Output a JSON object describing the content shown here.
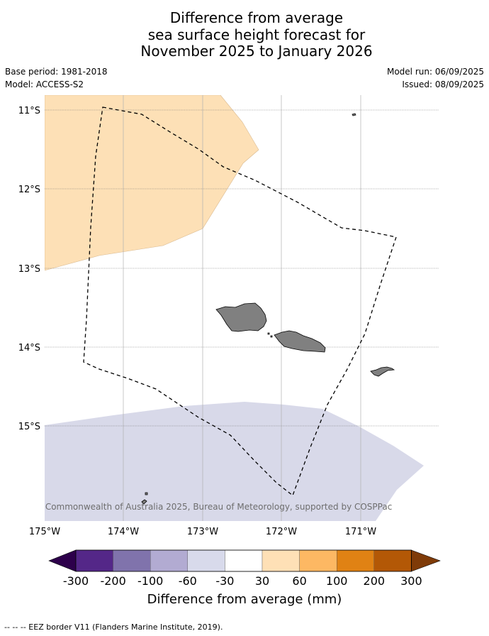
{
  "title": {
    "line1": "Difference from average",
    "line2": "sea surface height forecast for",
    "line3": "November 2025 to January 2026"
  },
  "meta": {
    "base_period": "Base period: 1981-2018",
    "model": "Model: ACCESS-S2",
    "model_run": "Model run: 06/09/2025",
    "issued": "Issued: 08/09/2025"
  },
  "map": {
    "lat_labels": [
      "11°S",
      "12°S",
      "13°S",
      "14°S",
      "15°S"
    ],
    "lon_labels": [
      "175°W",
      "174°W",
      "173°W",
      "172°W",
      "171°W"
    ],
    "credit": "© Commonwealth of Australia 2025, Bureau of Meteorology, supported by COSPPac",
    "colors": {
      "orange_region": "#fde0b6",
      "purple_region": "#d8d9e9",
      "land": "#808080",
      "grid": "#b0b0b0"
    }
  },
  "colorbar": {
    "ticks": [
      "-300",
      "-200",
      "-100",
      "-60",
      "-30",
      "30",
      "60",
      "100",
      "200",
      "300"
    ],
    "colors": [
      "#2d004b",
      "#542788",
      "#8073ac",
      "#b2abd2",
      "#d8daeb",
      "#ffffff",
      "#fee0b6",
      "#fdb863",
      "#e08214",
      "#b35806",
      "#7f3b08"
    ],
    "label": "Difference from average (mm)"
  },
  "footnote": "--  --  -- EEZ border V11 (Flanders Marine Institute, 2019)."
}
